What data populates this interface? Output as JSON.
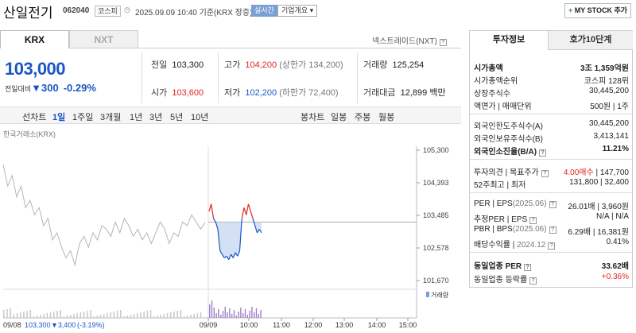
{
  "header": {
    "name": "산일전기",
    "code": "062040",
    "market": "코스피",
    "time": "2025.09.09 10:40",
    "basis": "기준(KRX 장중)",
    "live": "실시간",
    "corp_info": "기업개요",
    "my_stock": "MY STOCK 추가"
  },
  "tabs": {
    "krx": "KRX",
    "nxt": "NXT",
    "nxt_link": "넥스트레이드(NXT)"
  },
  "quote": {
    "price": "103,000",
    "change_label": "전일대비",
    "change_value": "300",
    "change_pct": "-0.29%",
    "prev_label": "전일",
    "prev": "103,300",
    "open_label": "시가",
    "open": "103,600",
    "high_label": "고가",
    "high": "104,200",
    "upper_limit": "(상한가 134,200)",
    "low_label": "저가",
    "low": "102,200",
    "lower_limit": "(하한가 72,400)",
    "volume_label": "거래량",
    "volume": "125,254",
    "amount_label": "거래대금",
    "amount": "12,899",
    "amount_unit": "백만"
  },
  "periods": {
    "line": "선차트",
    "items": [
      "1일",
      "1주일",
      "3개월",
      "1년",
      "3년",
      "5년",
      "10년"
    ],
    "selected": "1일",
    "candle": "봉차트",
    "candle_items": [
      "일봉",
      "주봉",
      "월봉"
    ]
  },
  "chart_data": {
    "type": "line",
    "source_label": "한국거래소(KRX)",
    "y_ticks": [
      "105,300",
      "104,393",
      "103,485",
      "102,578",
      "101,670"
    ],
    "ylim": [
      101670,
      105300
    ],
    "prev_close": 103300,
    "x_ticks": [
      "09/08",
      "09/09",
      "10:00",
      "11:00",
      "12:00",
      "13:00",
      "14:00",
      "15:00"
    ],
    "volume_label": "거래량",
    "prev_day_label": "09/08",
    "prev_day_close": "103,300",
    "prev_day_change": "▼3,400",
    "prev_day_pct": "(-3.19%)",
    "prev_day_series": [
      104900,
      104300,
      104600,
      104000,
      104300,
      103700,
      103900,
      103500,
      103700,
      103200,
      103400,
      102800,
      103000,
      102600,
      102300,
      102500,
      102100,
      102700,
      102900,
      102600,
      103000,
      102800,
      103200,
      103100,
      102900,
      103300,
      103000,
      103400,
      103200,
      102900,
      103100,
      102800,
      103000,
      102700,
      103000,
      103300,
      103100,
      102700,
      103000,
      102900,
      103300,
      103200,
      103500,
      103300,
      103100,
      103300
    ],
    "today_series": [
      103600,
      103800,
      103400,
      103300,
      103100,
      102500,
      102400,
      102300,
      102350,
      102250,
      102400,
      102300,
      102450,
      102350,
      102500,
      103400,
      103700,
      103500,
      103800,
      103600,
      103400,
      103200,
      103000,
      103100,
      103000
    ]
  },
  "info": {
    "tab_on": "투자정보",
    "tab_off": "호가10단계",
    "rows1": [
      {
        "l": "시가총액",
        "r": "3조 1,359억원",
        "bold": true
      },
      {
        "l": "시가총액순위",
        "r": "코스피 128위"
      },
      {
        "l": "상장주식수",
        "r": "30,445,200"
      },
      {
        "l": "액면가 | 매매단위",
        "r": "500원 | 1주"
      }
    ],
    "rows2": [
      {
        "l": "외국인한도주식수(A)",
        "r": "30,445,200"
      },
      {
        "l": "외국인보유주식수(B)",
        "r": "3,413,141"
      },
      {
        "l": "외국인소진율(B/A)",
        "r": "11.21%",
        "bold": true,
        "q": true
      }
    ],
    "opinion_label": "투자의견 | 목표주가",
    "opinion": "4.00매수",
    "target": "147,700",
    "w52_label": "52주최고 | 최저",
    "w52": "131,800 | 32,400",
    "per_label": "PER | EPS",
    "per_date": "(2025.06)",
    "per": "26.01배 | 3,960원",
    "est_label": "추정PER | EPS",
    "est": "N/A | N/A",
    "pbr_label": "PBR | BPS",
    "pbr_date": "(2025.06)",
    "pbr": "6.29배 | 16,381원",
    "div_label": "배당수익률 |",
    "div_date": "2024.12",
    "div": "0.41%",
    "sector_per_label": "동일업종 PER",
    "sector_per": "33.62배",
    "sector_chg_label": "동일업종 등락률",
    "sector_chg": "+0.36%"
  }
}
